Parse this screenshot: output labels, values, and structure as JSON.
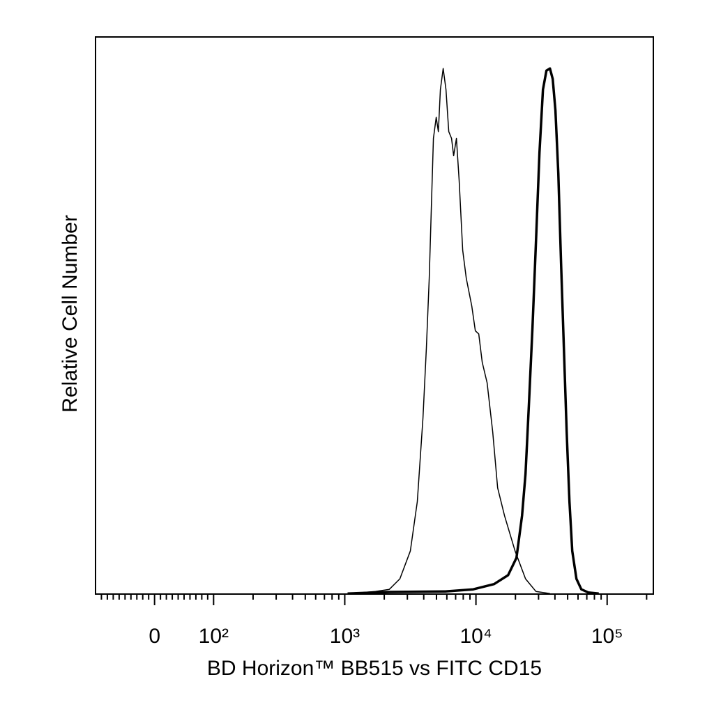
{
  "chart_data": {
    "type": "line",
    "xlabel": "BD Horizon™ BB515 vs FITC CD15",
    "ylabel": "Relative Cell Number",
    "xscale": "biexponential",
    "xlim": [
      -100,
      225000
    ],
    "ylim": [
      0,
      106
    ],
    "xticks": [
      0,
      {
        "value": 100,
        "label": "10²"
      },
      {
        "value": 1000,
        "label": "10³"
      },
      {
        "value": 10000,
        "label": "10⁴"
      },
      {
        "value": 100000,
        "label": "10⁵"
      }
    ],
    "xminorticks": [
      -90,
      -80,
      -70,
      -60,
      -50,
      -40,
      -30,
      -20,
      -10,
      10,
      20,
      30,
      40,
      50,
      60,
      70,
      80,
      90,
      200,
      300,
      400,
      500,
      600,
      700,
      800,
      900,
      2000,
      3000,
      4000,
      5000,
      6000,
      7000,
      8000,
      9000,
      20000,
      30000,
      40000,
      50000,
      60000,
      70000,
      80000,
      90000,
      200000
    ],
    "series": [
      {
        "color": "#000000",
        "line_width": 1.5,
        "x": [
          1117,
          1714,
          2188,
          2630,
          3162,
          3573,
          3945,
          4190,
          4403,
          4568,
          4742,
          4978,
          5167,
          5358,
          5623,
          5905,
          6206,
          6514,
          6761,
          7096,
          7447,
          7925,
          8433,
          9290,
          9886,
          10500,
          11160,
          12160,
          13420,
          14630,
          16520,
          19860,
          23870,
          28650,
          36630
        ],
        "values": [
          0.1,
          0.5,
          0.9,
          2.9,
          8.2,
          17.6,
          33.5,
          46.8,
          60.1,
          73.4,
          86.7,
          90.7,
          88.0,
          96.0,
          100,
          96.0,
          88.0,
          86.7,
          83.4,
          86.7,
          78.7,
          65.4,
          60.1,
          54.8,
          50.1,
          49.5,
          44.1,
          40.2,
          30.9,
          20.2,
          14.9,
          8.2,
          2.9,
          0.5,
          0.1
        ]
      },
      {
        "color": "#000000",
        "line_width": 3.5,
        "x": [
          1050,
          2188,
          5834,
          9528,
          13740,
          17580,
          20360,
          22450,
          23870,
          25360,
          26970,
          28650,
          30480,
          32420,
          34450,
          36630,
          38460,
          40380,
          42440,
          44570,
          46810,
          49150,
          51620,
          54200,
          58340,
          63550,
          71790,
          86300
        ],
        "values": [
          0.1,
          0.4,
          0.5,
          0.9,
          1.9,
          3.6,
          6.9,
          14.9,
          22.9,
          36.2,
          50.8,
          66.8,
          84.0,
          96.0,
          99.6,
          100,
          98.0,
          92.0,
          80.1,
          62.8,
          46.8,
          30.9,
          17.6,
          8.2,
          2.9,
          0.9,
          0.3,
          0.1
        ]
      }
    ]
  }
}
